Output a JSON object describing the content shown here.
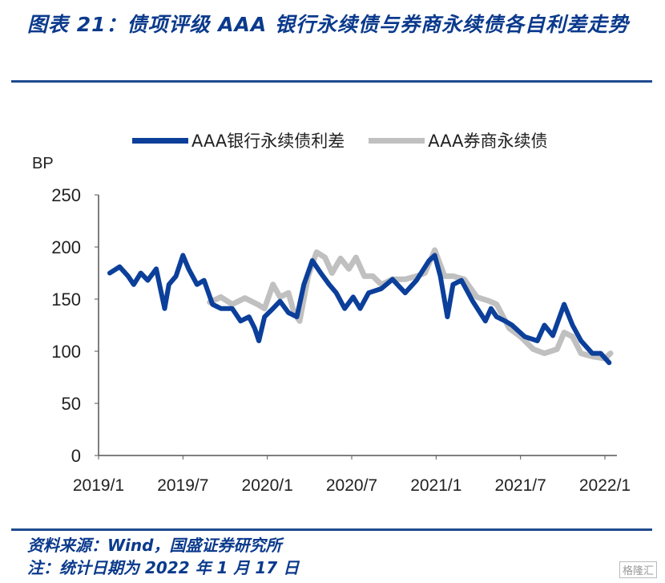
{
  "title": "图表 21：债项评级 AAA 银行永续债与券商永续债各自利差走势",
  "source": "资料来源：Wind，国盛证券研究所",
  "note": "注：统计日期为 2022 年 1 月 17 日",
  "watermark": "格隆汇",
  "colors": {
    "bank": "#0b3f9a",
    "broker": "#c0c0c0",
    "title": "#0b3a8c"
  },
  "chart_data": {
    "type": "line",
    "ylabel": "BP",
    "ylim": [
      0,
      250
    ],
    "yticks": [
      0,
      50,
      100,
      150,
      200,
      250
    ],
    "xlabel": "",
    "x_unit": "months since 2019/1",
    "xlim": [
      0,
      36.5
    ],
    "xticks": [
      {
        "v": 0,
        "label": "2019/1"
      },
      {
        "v": 6,
        "label": "2019/7"
      },
      {
        "v": 12,
        "label": "2020/1"
      },
      {
        "v": 18,
        "label": "2020/7"
      },
      {
        "v": 24,
        "label": "2021/1"
      },
      {
        "v": 30,
        "label": "2021/7"
      },
      {
        "v": 36,
        "label": "2022/1"
      }
    ],
    "legend_position": "top",
    "series": [
      {
        "name": "AAA银行永续债利差",
        "x": [
          0.8,
          1.5,
          2.1,
          2.5,
          3.0,
          3.5,
          4.1,
          4.4,
          4.7,
          5.0,
          5.5,
          6.0,
          6.4,
          7.0,
          7.5,
          8.1,
          8.7,
          9.5,
          10.1,
          10.7,
          11.1,
          11.4,
          11.8,
          12.4,
          12.9,
          13.5,
          14.1,
          14.6,
          15.2,
          15.8,
          16.4,
          16.9,
          17.5,
          18.1,
          18.6,
          19.2,
          20.1,
          20.9,
          21.8,
          22.6,
          23.5,
          23.9,
          24.3,
          24.8,
          25.2,
          25.8,
          26.6,
          27.5,
          27.9,
          28.3,
          28.9,
          29.4,
          30.3,
          31.2,
          31.7,
          32.3,
          33.1,
          33.7,
          34.3,
          35.1,
          35.7,
          36.3
        ],
        "values": [
          175,
          181,
          172,
          164,
          175,
          168,
          179,
          160,
          141,
          164,
          172,
          192,
          179,
          164,
          168,
          145,
          141,
          141,
          129,
          133,
          122,
          110,
          133,
          141,
          148,
          137,
          133,
          164,
          187,
          175,
          164,
          156,
          141,
          152,
          141,
          156,
          160,
          169,
          156,
          168,
          187,
          192,
          172,
          133,
          164,
          168,
          148,
          129,
          141,
          133,
          129,
          125,
          114,
          110,
          125,
          115,
          145,
          125,
          110,
          98,
          98,
          89
        ]
      },
      {
        "name": "AAA券商永续债",
        "x": [
          7.9,
          8.7,
          9.5,
          10.4,
          11.3,
          11.8,
          12.4,
          12.9,
          13.5,
          13.9,
          14.3,
          14.9,
          15.5,
          16.1,
          16.6,
          17.2,
          17.8,
          18.3,
          18.9,
          19.5,
          20.1,
          20.9,
          21.8,
          22.6,
          23.2,
          23.9,
          24.6,
          25.2,
          26.0,
          26.9,
          27.8,
          28.3,
          29.2,
          30.0,
          30.9,
          31.7,
          32.6,
          33.1,
          33.7,
          34.3,
          35.1,
          36.0,
          36.4
        ],
        "values": [
          147,
          152,
          145,
          151,
          145,
          141,
          164,
          152,
          156,
          137,
          129,
          172,
          195,
          190,
          175,
          189,
          179,
          190,
          172,
          172,
          164,
          169,
          169,
          172,
          175,
          197,
          172,
          172,
          169,
          152,
          148,
          145,
          122,
          114,
          102,
          98,
          102,
          118,
          114,
          98,
          95,
          93,
          98
        ]
      }
    ]
  }
}
